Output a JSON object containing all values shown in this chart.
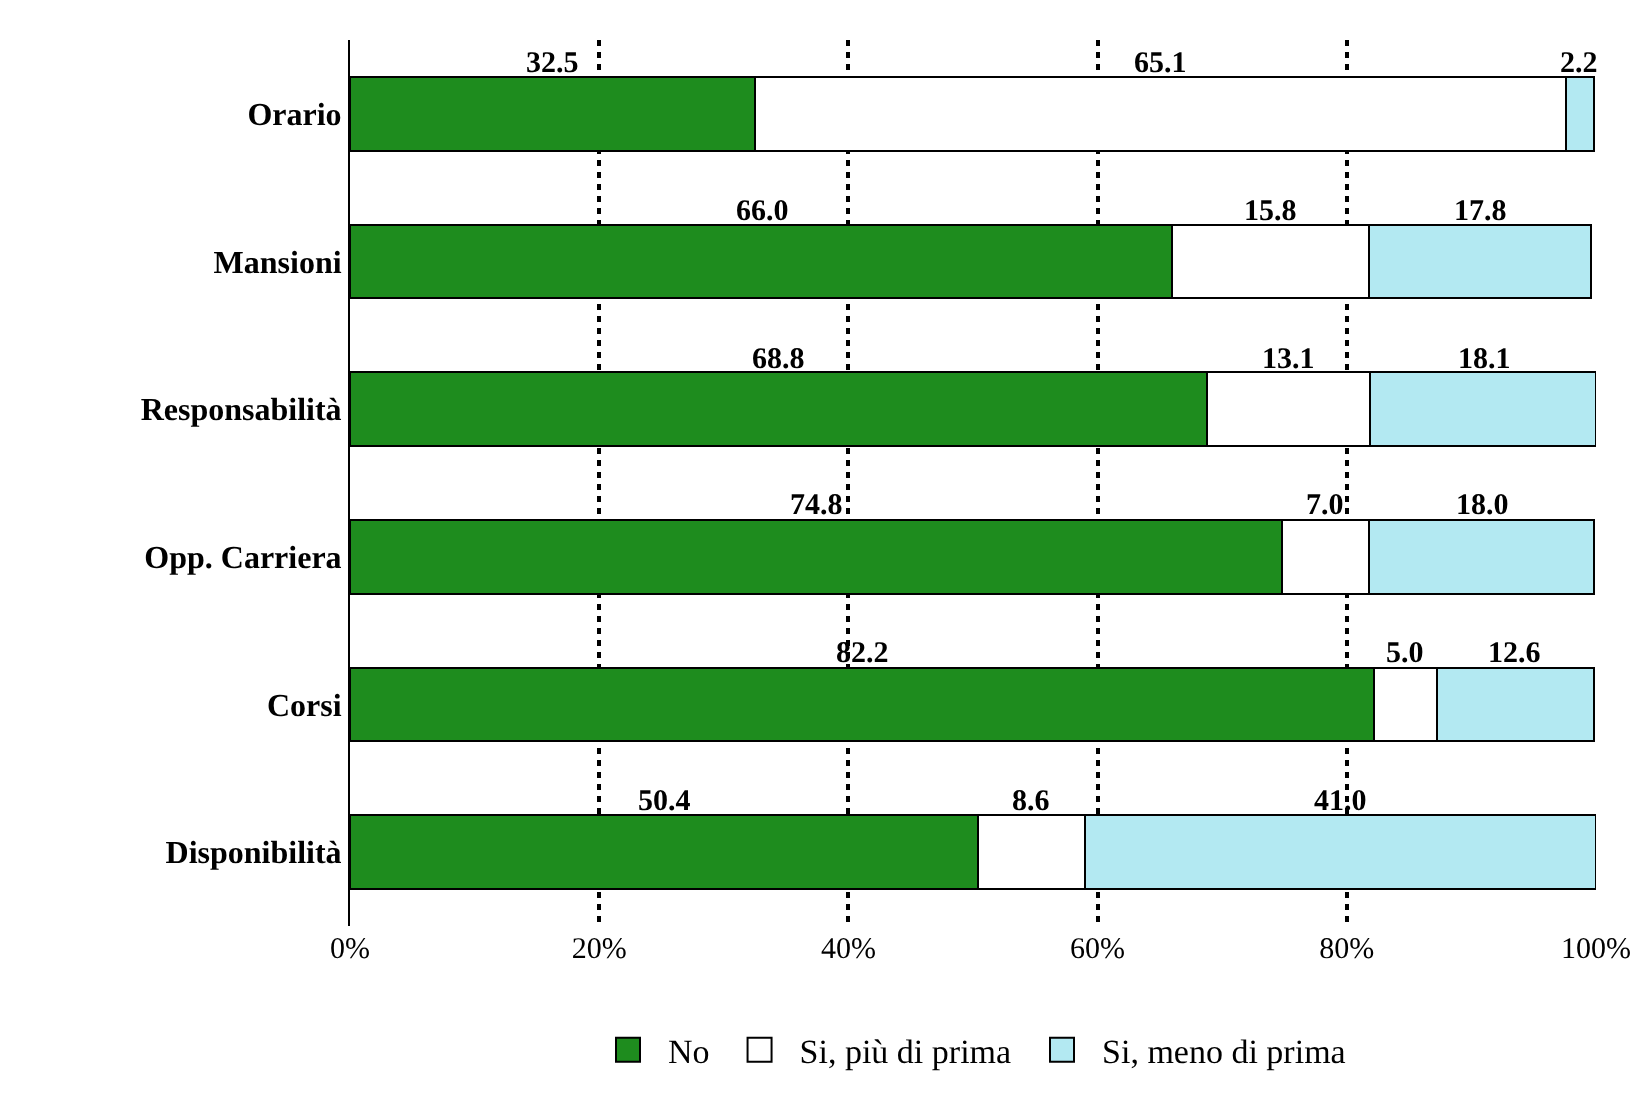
{
  "chart_data": {
    "type": "bar",
    "orientation": "horizontal",
    "stacked": true,
    "categories": [
      "Orario",
      "Mansioni",
      "Responsabilità",
      "Opp. Carriera",
      "Corsi",
      "Disponibilità"
    ],
    "series": [
      {
        "name": "No",
        "color": "#1e8c1e",
        "values": [
          32.5,
          66.0,
          68.8,
          74.8,
          82.2,
          50.4
        ],
        "value_labels": [
          "32.5",
          "66.0",
          "68.8",
          "74.8",
          "82.2",
          "50.4"
        ]
      },
      {
        "name": "Si, più di prima",
        "color": "#ffffff",
        "values": [
          65.1,
          15.8,
          13.1,
          7.0,
          5.0,
          8.6
        ],
        "value_labels": [
          "65.1",
          "15.8",
          "13.1",
          "7.0",
          "5.0",
          "8.6"
        ]
      },
      {
        "name": "Si, meno di prima",
        "color": "#b3e9f2",
        "values": [
          2.2,
          17.8,
          18.1,
          18.0,
          12.6,
          41.0
        ],
        "value_labels": [
          "2.2",
          "17.8",
          "18.1",
          "18.0",
          "12.6",
          "41.0"
        ]
      }
    ],
    "xlim": [
      0,
      100
    ],
    "xticks": [
      {
        "value": 0,
        "label": "0%"
      },
      {
        "value": 20,
        "label": "20%"
      },
      {
        "value": 40,
        "label": "40%"
      },
      {
        "value": 60,
        "label": "60%"
      },
      {
        "value": 80,
        "label": "80%"
      },
      {
        "value": 100,
        "label": "100%"
      }
    ],
    "grid": "x",
    "legend": "bottom"
  }
}
